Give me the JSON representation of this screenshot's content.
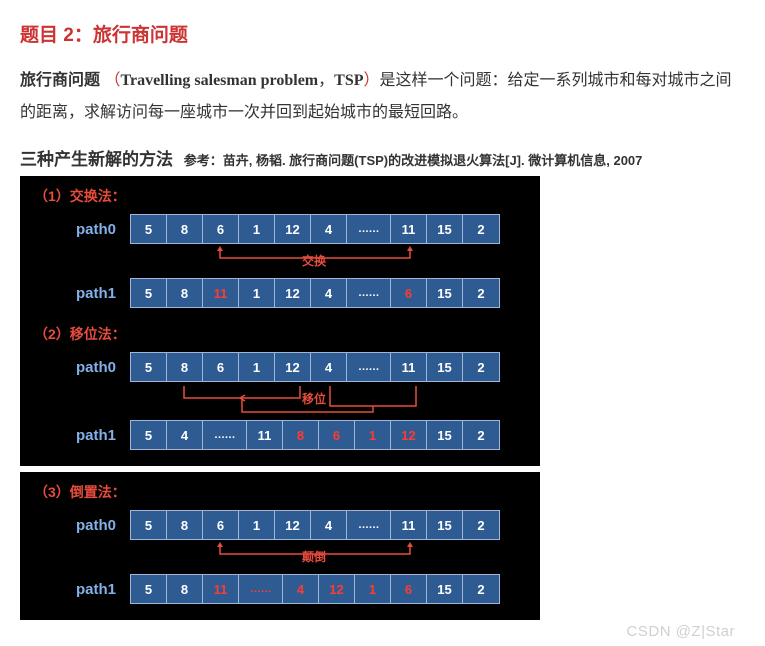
{
  "title": "题目 2：旅行商问题",
  "desc_prefix": "旅行商问题",
  "desc_paren_open": "（",
  "desc_eng": "Travelling salesman problem",
  "desc_comma": "，",
  "desc_tsp": "TSP",
  "desc_paren_close": "）",
  "desc_body": "是这样一个问题：给定一系列城市和每对城市之间的距离，求解访问每一座城市一次并回到起始城市的最短回路。",
  "methods_title": "三种产生新解的方法",
  "methods_ref": "参考：苗卉, 杨韬. 旅行商问题(TSP)的改进模拟退火算法[J]. 微计算机信息, 2007",
  "m1": {
    "label": "（1）交换法：",
    "row0_label": "path0",
    "row0": [
      "5",
      "8",
      "6",
      "1",
      "12",
      "4",
      "……",
      "11",
      "15",
      "2"
    ],
    "anno": "交换",
    "row1_label": "path1",
    "row1": [
      "5",
      "8",
      "11",
      "1",
      "12",
      "4",
      "……",
      "6",
      "15",
      "2"
    ],
    "row1_red": [
      2,
      7
    ]
  },
  "m2": {
    "label": "（2）移位法：",
    "row0_label": "path0",
    "row0": [
      "5",
      "8",
      "6",
      "1",
      "12",
      "4",
      "……",
      "11",
      "15",
      "2"
    ],
    "anno": "移位",
    "row1_label": "path1",
    "row1": [
      "5",
      "4",
      "……",
      "11",
      "8",
      "6",
      "1",
      "12",
      "15",
      "2"
    ],
    "row1_red": [
      4,
      5,
      6,
      7
    ]
  },
  "m3": {
    "label": "（3）倒置法：",
    "row0_label": "path0",
    "row0": [
      "5",
      "8",
      "6",
      "1",
      "12",
      "4",
      "……",
      "11",
      "15",
      "2"
    ],
    "anno": "颠倒",
    "row1_label": "path1",
    "row1": [
      "5",
      "8",
      "11",
      "……",
      "4",
      "12",
      "1",
      "6",
      "15",
      "2"
    ],
    "row1_red": [
      2,
      3,
      4,
      5,
      6,
      7
    ]
  },
  "watermark": "CSDN @Z|Star",
  "colors": {
    "accent_red": "#cc3333",
    "panel_bg": "#000000",
    "cell_bg": "#2f5b93",
    "cell_border": "#9db7d8",
    "label_blue": "#82b0e8",
    "highlight": "#ff3b30",
    "anno_line": "#e74c3c"
  }
}
